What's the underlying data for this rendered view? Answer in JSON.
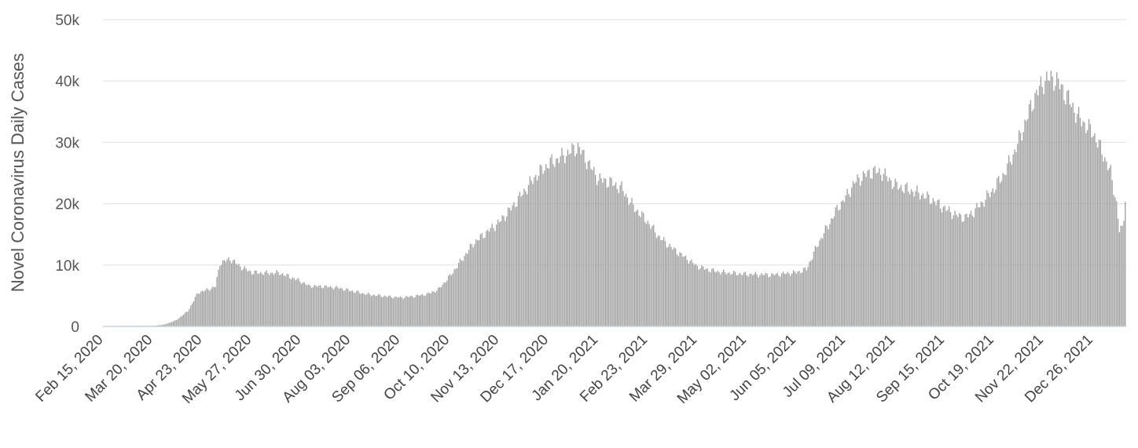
{
  "chart_data": {
    "type": "bar",
    "title": "",
    "xlabel": "",
    "ylabel": "Novel Coronavirus Daily Cases",
    "ylim": [
      0,
      50000
    ],
    "yticks": [
      0,
      10000,
      20000,
      30000,
      40000,
      50000
    ],
    "ytick_labels": [
      "0",
      "10k",
      "20k",
      "30k",
      "40k",
      "50k"
    ],
    "x_start_date": "2020-02-15",
    "x_end_date": "2022-01-17",
    "xtick_labels": [
      "Feb 15, 2020",
      "Mar 20, 2020",
      "Apr 23, 2020",
      "May 27, 2020",
      "Jun 30, 2020",
      "Aug 03, 2020",
      "Sep 06, 2020",
      "Oct 10, 2020",
      "Nov 13, 2020",
      "Dec 17, 2020",
      "Jan 20, 2021",
      "Feb 23, 2021",
      "Mar 29, 2021",
      "May 02, 2021",
      "Jun 05, 2021",
      "Jul 09, 2021",
      "Aug 12, 2021",
      "Sep 15, 2021",
      "Oct 19, 2021",
      "Nov 22, 2021",
      "Dec 26, 2021"
    ],
    "series": [
      {
        "bar_color": "#9e9e9e",
        "values_by_date": [
          [
            "2020-02-15",
            50
          ],
          [
            "2020-03-20",
            100
          ],
          [
            "2020-03-28",
            300
          ],
          [
            "2020-04-05",
            1000
          ],
          [
            "2020-04-13",
            2500
          ],
          [
            "2020-04-20",
            5500
          ],
          [
            "2020-04-27",
            6000
          ],
          [
            "2020-05-02",
            6500
          ],
          [
            "2020-05-05",
            10300
          ],
          [
            "2020-05-12",
            11000
          ],
          [
            "2020-05-20",
            9600
          ],
          [
            "2020-05-27",
            8800
          ],
          [
            "2020-06-05",
            8700
          ],
          [
            "2020-06-15",
            8700
          ],
          [
            "2020-06-25",
            7800
          ],
          [
            "2020-06-30",
            7300
          ],
          [
            "2020-07-05",
            6600
          ],
          [
            "2020-07-15",
            6500
          ],
          [
            "2020-07-25",
            6300
          ],
          [
            "2020-08-03",
            5800
          ],
          [
            "2020-08-15",
            5200
          ],
          [
            "2020-08-27",
            4900
          ],
          [
            "2020-09-06",
            4700
          ],
          [
            "2020-09-15",
            4900
          ],
          [
            "2020-09-25",
            5300
          ],
          [
            "2020-10-02",
            6000
          ],
          [
            "2020-10-10",
            8200
          ],
          [
            "2020-10-18",
            10800
          ],
          [
            "2020-10-26",
            13500
          ],
          [
            "2020-11-05",
            15500
          ],
          [
            "2020-11-13",
            17000
          ],
          [
            "2020-11-22",
            19500
          ],
          [
            "2020-11-30",
            22000
          ],
          [
            "2020-12-08",
            24500
          ],
          [
            "2020-12-17",
            26500
          ],
          [
            "2020-12-25",
            27500
          ],
          [
            "2021-01-01",
            28500
          ],
          [
            "2021-01-06",
            29300
          ],
          [
            "2021-01-12",
            27000
          ],
          [
            "2021-01-20",
            24000
          ],
          [
            "2021-01-28",
            23500
          ],
          [
            "2021-02-05",
            22500
          ],
          [
            "2021-02-13",
            19500
          ],
          [
            "2021-02-23",
            17000
          ],
          [
            "2021-03-03",
            14500
          ],
          [
            "2021-03-13",
            12500
          ],
          [
            "2021-03-22",
            11000
          ],
          [
            "2021-03-29",
            9800
          ],
          [
            "2021-04-06",
            9200
          ],
          [
            "2021-04-15",
            8800
          ],
          [
            "2021-05-02",
            8500
          ],
          [
            "2021-05-20",
            8400
          ],
          [
            "2021-06-05",
            8800
          ],
          [
            "2021-06-12",
            9300
          ],
          [
            "2021-06-20",
            13500
          ],
          [
            "2021-06-27",
            16500
          ],
          [
            "2021-07-04",
            19500
          ],
          [
            "2021-07-09",
            21000
          ],
          [
            "2021-07-15",
            23500
          ],
          [
            "2021-07-21",
            24500
          ],
          [
            "2021-07-28",
            25300
          ],
          [
            "2021-08-03",
            25000
          ],
          [
            "2021-08-12",
            23000
          ],
          [
            "2021-08-22",
            22200
          ],
          [
            "2021-08-30",
            21500
          ],
          [
            "2021-09-07",
            20500
          ],
          [
            "2021-09-15",
            19200
          ],
          [
            "2021-09-22",
            18200
          ],
          [
            "2021-09-29",
            17700
          ],
          [
            "2021-10-05",
            18700
          ],
          [
            "2021-10-12",
            20500
          ],
          [
            "2021-10-19",
            22500
          ],
          [
            "2021-10-26",
            25000
          ],
          [
            "2021-11-02",
            28500
          ],
          [
            "2021-11-09",
            33000
          ],
          [
            "2021-11-15",
            37000
          ],
          [
            "2021-11-22",
            40000
          ],
          [
            "2021-11-29",
            40500
          ],
          [
            "2021-12-04",
            39000
          ],
          [
            "2021-12-09",
            37000
          ],
          [
            "2021-12-16",
            34000
          ],
          [
            "2021-12-22",
            32500
          ],
          [
            "2021-12-26",
            31500
          ],
          [
            "2022-01-01",
            28500
          ],
          [
            "2022-01-07",
            25000
          ],
          [
            "2022-01-11",
            20000
          ],
          [
            "2022-01-13",
            15500
          ],
          [
            "2022-01-15",
            16000
          ],
          [
            "2022-01-16",
            18000
          ],
          [
            "2022-01-17",
            21000
          ]
        ]
      }
    ],
    "grid": true,
    "legend": "none"
  }
}
